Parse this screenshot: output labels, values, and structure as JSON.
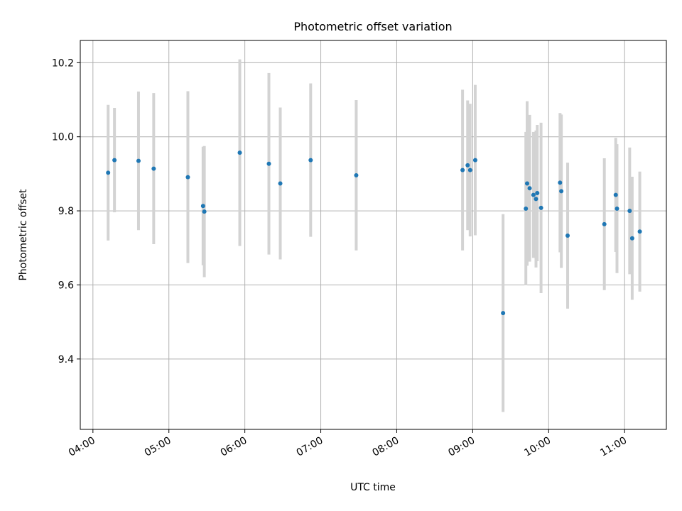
{
  "chart_data": {
    "type": "scatter",
    "title": "Photometric offset variation",
    "xlabel": "UTC time",
    "ylabel": "Photometric offset",
    "x_tick_labels": [
      "04:00",
      "05:00",
      "06:00",
      "07:00",
      "08:00",
      "09:00",
      "10:00",
      "11:00"
    ],
    "y_tick_labels": [
      "9.4",
      "9.6",
      "9.8",
      "10.0",
      "10.2"
    ],
    "xlim": [
      "03:50",
      "11:33"
    ],
    "ylim": [
      9.21,
      10.26
    ],
    "grid": true,
    "point_color": "#1f77b4",
    "errorbar_color": "#d3d3d3",
    "points": [
      {
        "x": "04:12",
        "y": 9.903,
        "err": 0.183
      },
      {
        "x": "04:17",
        "y": 9.937,
        "err": 0.141
      },
      {
        "x": "04:36",
        "y": 9.935,
        "err": 0.187
      },
      {
        "x": "04:48",
        "y": 9.914,
        "err": 0.204
      },
      {
        "x": "05:15",
        "y": 9.891,
        "err": 0.232
      },
      {
        "x": "05:27",
        "y": 9.813,
        "err": 0.16
      },
      {
        "x": "05:28",
        "y": 9.798,
        "err": 0.177
      },
      {
        "x": "05:56",
        "y": 9.957,
        "err": 0.252
      },
      {
        "x": "06:19",
        "y": 9.927,
        "err": 0.245
      },
      {
        "x": "06:28",
        "y": 9.874,
        "err": 0.205
      },
      {
        "x": "06:52",
        "y": 9.937,
        "err": 0.207
      },
      {
        "x": "07:28",
        "y": 9.896,
        "err": 0.203
      },
      {
        "x": "08:52",
        "y": 9.91,
        "err": 0.217
      },
      {
        "x": "08:56",
        "y": 9.923,
        "err": 0.175
      },
      {
        "x": "08:58",
        "y": 9.91,
        "err": 0.179
      },
      {
        "x": "09:02",
        "y": 9.937,
        "err": 0.203
      },
      {
        "x": "09:24",
        "y": 9.524,
        "err": 0.267
      },
      {
        "x": "09:42",
        "y": 9.806,
        "err": 0.207
      },
      {
        "x": "09:43",
        "y": 9.874,
        "err": 0.222
      },
      {
        "x": "09:45",
        "y": 9.861,
        "err": 0.198
      },
      {
        "x": "09:48",
        "y": 9.843,
        "err": 0.17
      },
      {
        "x": "09:50",
        "y": 9.832,
        "err": 0.185
      },
      {
        "x": "09:51",
        "y": 9.848,
        "err": 0.184
      },
      {
        "x": "09:54",
        "y": 9.808,
        "err": 0.23
      },
      {
        "x": "10:09",
        "y": 9.876,
        "err": 0.188
      },
      {
        "x": "10:10",
        "y": 9.853,
        "err": 0.207
      },
      {
        "x": "10:15",
        "y": 9.733,
        "err": 0.197
      },
      {
        "x": "10:44",
        "y": 9.764,
        "err": 0.178
      },
      {
        "x": "10:53",
        "y": 9.843,
        "err": 0.154
      },
      {
        "x": "10:54",
        "y": 9.806,
        "err": 0.174
      },
      {
        "x": "11:04",
        "y": 9.8,
        "err": 0.171
      },
      {
        "x": "11:06",
        "y": 9.726,
        "err": 0.166
      },
      {
        "x": "11:12",
        "y": 9.744,
        "err": 0.162
      }
    ]
  }
}
